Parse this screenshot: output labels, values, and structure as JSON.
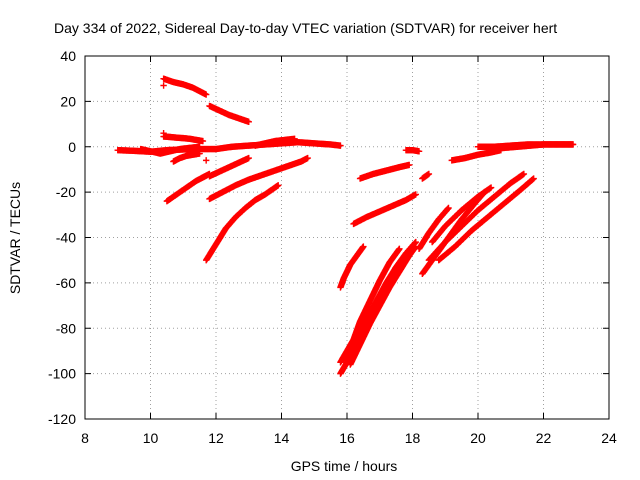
{
  "chart_data": {
    "type": "scatter",
    "title": "Day 334 of 2022, Sidereal Day-to-day VTEC variation (SDTVAR) for receiver hert",
    "xlabel": "GPS time / hours",
    "ylabel": "SDTVAR / TECUs",
    "xlim": [
      8,
      24
    ],
    "ylim": [
      -120,
      40
    ],
    "xticks": [
      8,
      10,
      12,
      14,
      16,
      18,
      20,
      22,
      24
    ],
    "yticks": [
      -120,
      -100,
      -80,
      -60,
      -40,
      -20,
      0,
      20,
      40
    ],
    "grid": true,
    "marker": "+",
    "color": "#ff0000",
    "series": [
      {
        "x": [
          9.0,
          9.5,
          10.0,
          10.5,
          11.0,
          11.5,
          12.0,
          12.5,
          13.0,
          13.5,
          14.0,
          14.5,
          15.0,
          15.5,
          15.8
        ],
        "y": [
          -1.5,
          -1.8,
          -2.2,
          -1.5,
          -1.2,
          -1.0,
          -1.0,
          0.0,
          0.5,
          1.0,
          1.5,
          2.0,
          1.5,
          1.0,
          0.5
        ]
      },
      {
        "x": [
          10.4,
          10.6,
          10.8,
          11.0,
          11.2,
          11.4,
          11.6
        ],
        "y": [
          4.5,
          4.3,
          4.0,
          3.8,
          3.5,
          3.0,
          2.5
        ]
      },
      {
        "x": [
          10.4,
          10.7,
          11.0,
          11.3,
          11.5,
          11.7
        ],
        "y": [
          30,
          28.5,
          27.5,
          26,
          24.5,
          23
        ]
      },
      {
        "x": [
          11.8,
          12.1,
          12.4,
          12.7,
          13.0
        ],
        "y": [
          18,
          16,
          14,
          12.5,
          11
        ]
      },
      {
        "x": [
          9.7,
          10.0,
          10.3,
          10.6,
          10.9,
          11.2,
          11.5
        ],
        "y": [
          -1,
          -2,
          -3,
          -2,
          -1,
          -0.5,
          0
        ]
      },
      {
        "x": [
          10.7,
          10.9,
          11.1,
          11.3,
          11.5
        ],
        "y": [
          -6.5,
          -5,
          -4,
          -3.5,
          -3
        ]
      },
      {
        "x": [
          11.8,
          12.1,
          12.4,
          12.7,
          13.0
        ],
        "y": [
          -13,
          -11,
          -9,
          -7,
          -5
        ]
      },
      {
        "x": [
          13.2,
          13.5,
          13.8,
          14.1,
          14.4
        ],
        "y": [
          0.5,
          1.5,
          2.5,
          3.0,
          3.5
        ]
      },
      {
        "x": [
          10.5,
          10.8,
          11.1,
          11.4,
          11.6,
          11.8
        ],
        "y": [
          -24,
          -21,
          -18,
          -15,
          -13.5,
          -12
        ]
      },
      {
        "x": [
          11.8,
          12.2,
          12.6,
          13.0,
          13.4,
          13.8,
          14.2,
          14.6,
          14.8
        ],
        "y": [
          -23,
          -20,
          -17,
          -14.5,
          -12.5,
          -10.5,
          -8.5,
          -6.5,
          -5
        ]
      },
      {
        "x": [
          11.7,
          12.0,
          12.3,
          12.6,
          12.9,
          13.2,
          13.5,
          13.8,
          13.9
        ],
        "y": [
          -50,
          -43,
          -36,
          -31,
          -27,
          -23.5,
          -21,
          -18,
          -17
        ]
      },
      {
        "x": [
          15.8,
          15.9,
          16.0,
          16.1,
          16.2,
          16.3,
          16.4,
          16.5
        ],
        "y": [
          -62,
          -58,
          -55,
          -52,
          -50,
          -48,
          -46,
          -44
        ]
      },
      {
        "x": [
          15.8,
          16.0,
          16.2,
          16.4,
          16.7,
          17.0,
          17.3,
          17.6
        ],
        "y": [
          -95,
          -90,
          -85,
          -77,
          -68,
          -59,
          -51,
          -45
        ]
      },
      {
        "x": [
          15.8,
          16.0,
          16.3,
          16.6,
          16.9,
          17.2,
          17.5,
          17.8,
          18.1
        ],
        "y": [
          -100,
          -95,
          -85,
          -76,
          -68,
          -60,
          -53,
          -47,
          -42
        ]
      },
      {
        "x": [
          16.1,
          16.4,
          16.7,
          17.0,
          17.3,
          17.6,
          17.9,
          18.1
        ],
        "y": [
          -96,
          -87,
          -78,
          -70,
          -62,
          -55,
          -48,
          -44
        ]
      },
      {
        "x": [
          16.2,
          16.6,
          17.0,
          17.4,
          17.8,
          18.1
        ],
        "y": [
          -34,
          -31,
          -28.5,
          -26,
          -23.5,
          -21
        ]
      },
      {
        "x": [
          16.4,
          16.8,
          17.2,
          17.6,
          17.9
        ],
        "y": [
          -14,
          -12,
          -10.5,
          -9,
          -8
        ]
      },
      {
        "x": [
          17.8,
          18.0,
          18.2
        ],
        "y": [
          -1.5,
          -1.5,
          -2
        ]
      },
      {
        "x": [
          18.3,
          18.5
        ],
        "y": [
          -14,
          -12
        ]
      },
      {
        "x": [
          18.2,
          18.5,
          18.8,
          19.1
        ],
        "y": [
          -45,
          -38,
          -32,
          -27
        ]
      },
      {
        "x": [
          18.3,
          18.7,
          19.1,
          19.5,
          19.9,
          20.2
        ],
        "y": [
          -56,
          -48,
          -40,
          -32,
          -25,
          -20
        ]
      },
      {
        "x": [
          18.6,
          19.0,
          19.5,
          20.0,
          20.4
        ],
        "y": [
          -42,
          -35,
          -28,
          -22,
          -18
        ]
      },
      {
        "x": [
          18.5,
          19.0,
          19.5,
          20.0,
          20.5,
          21.0,
          21.4
        ],
        "y": [
          -50,
          -42,
          -35,
          -28,
          -22,
          -16,
          -12
        ]
      },
      {
        "x": [
          18.8,
          19.3,
          19.8,
          20.3,
          20.8,
          21.3,
          21.7
        ],
        "y": [
          -50,
          -44,
          -37,
          -31,
          -25,
          -19,
          -14
        ]
      },
      {
        "x": [
          19.2,
          19.6,
          20.0,
          20.4,
          20.7
        ],
        "y": [
          -6,
          -5,
          -3.5,
          -2.5,
          -1.5
        ]
      },
      {
        "x": [
          20.0,
          20.5,
          21.0,
          21.5,
          22.0,
          22.5,
          22.9
        ],
        "y": [
          0,
          0,
          0.5,
          1,
          1,
          1,
          1
        ]
      },
      {
        "x": [
          20.4,
          20.8,
          21.2,
          21.6,
          22.0,
          22.4,
          22.9
        ],
        "y": [
          -1,
          -0.5,
          0,
          0.5,
          1,
          1,
          1
        ]
      },
      {
        "x": [
          10.4
        ],
        "y": [
          27
        ]
      },
      {
        "x": [
          10.4
        ],
        "y": [
          6
        ]
      },
      {
        "x": [
          11.7
        ],
        "y": [
          -6
        ]
      }
    ]
  }
}
